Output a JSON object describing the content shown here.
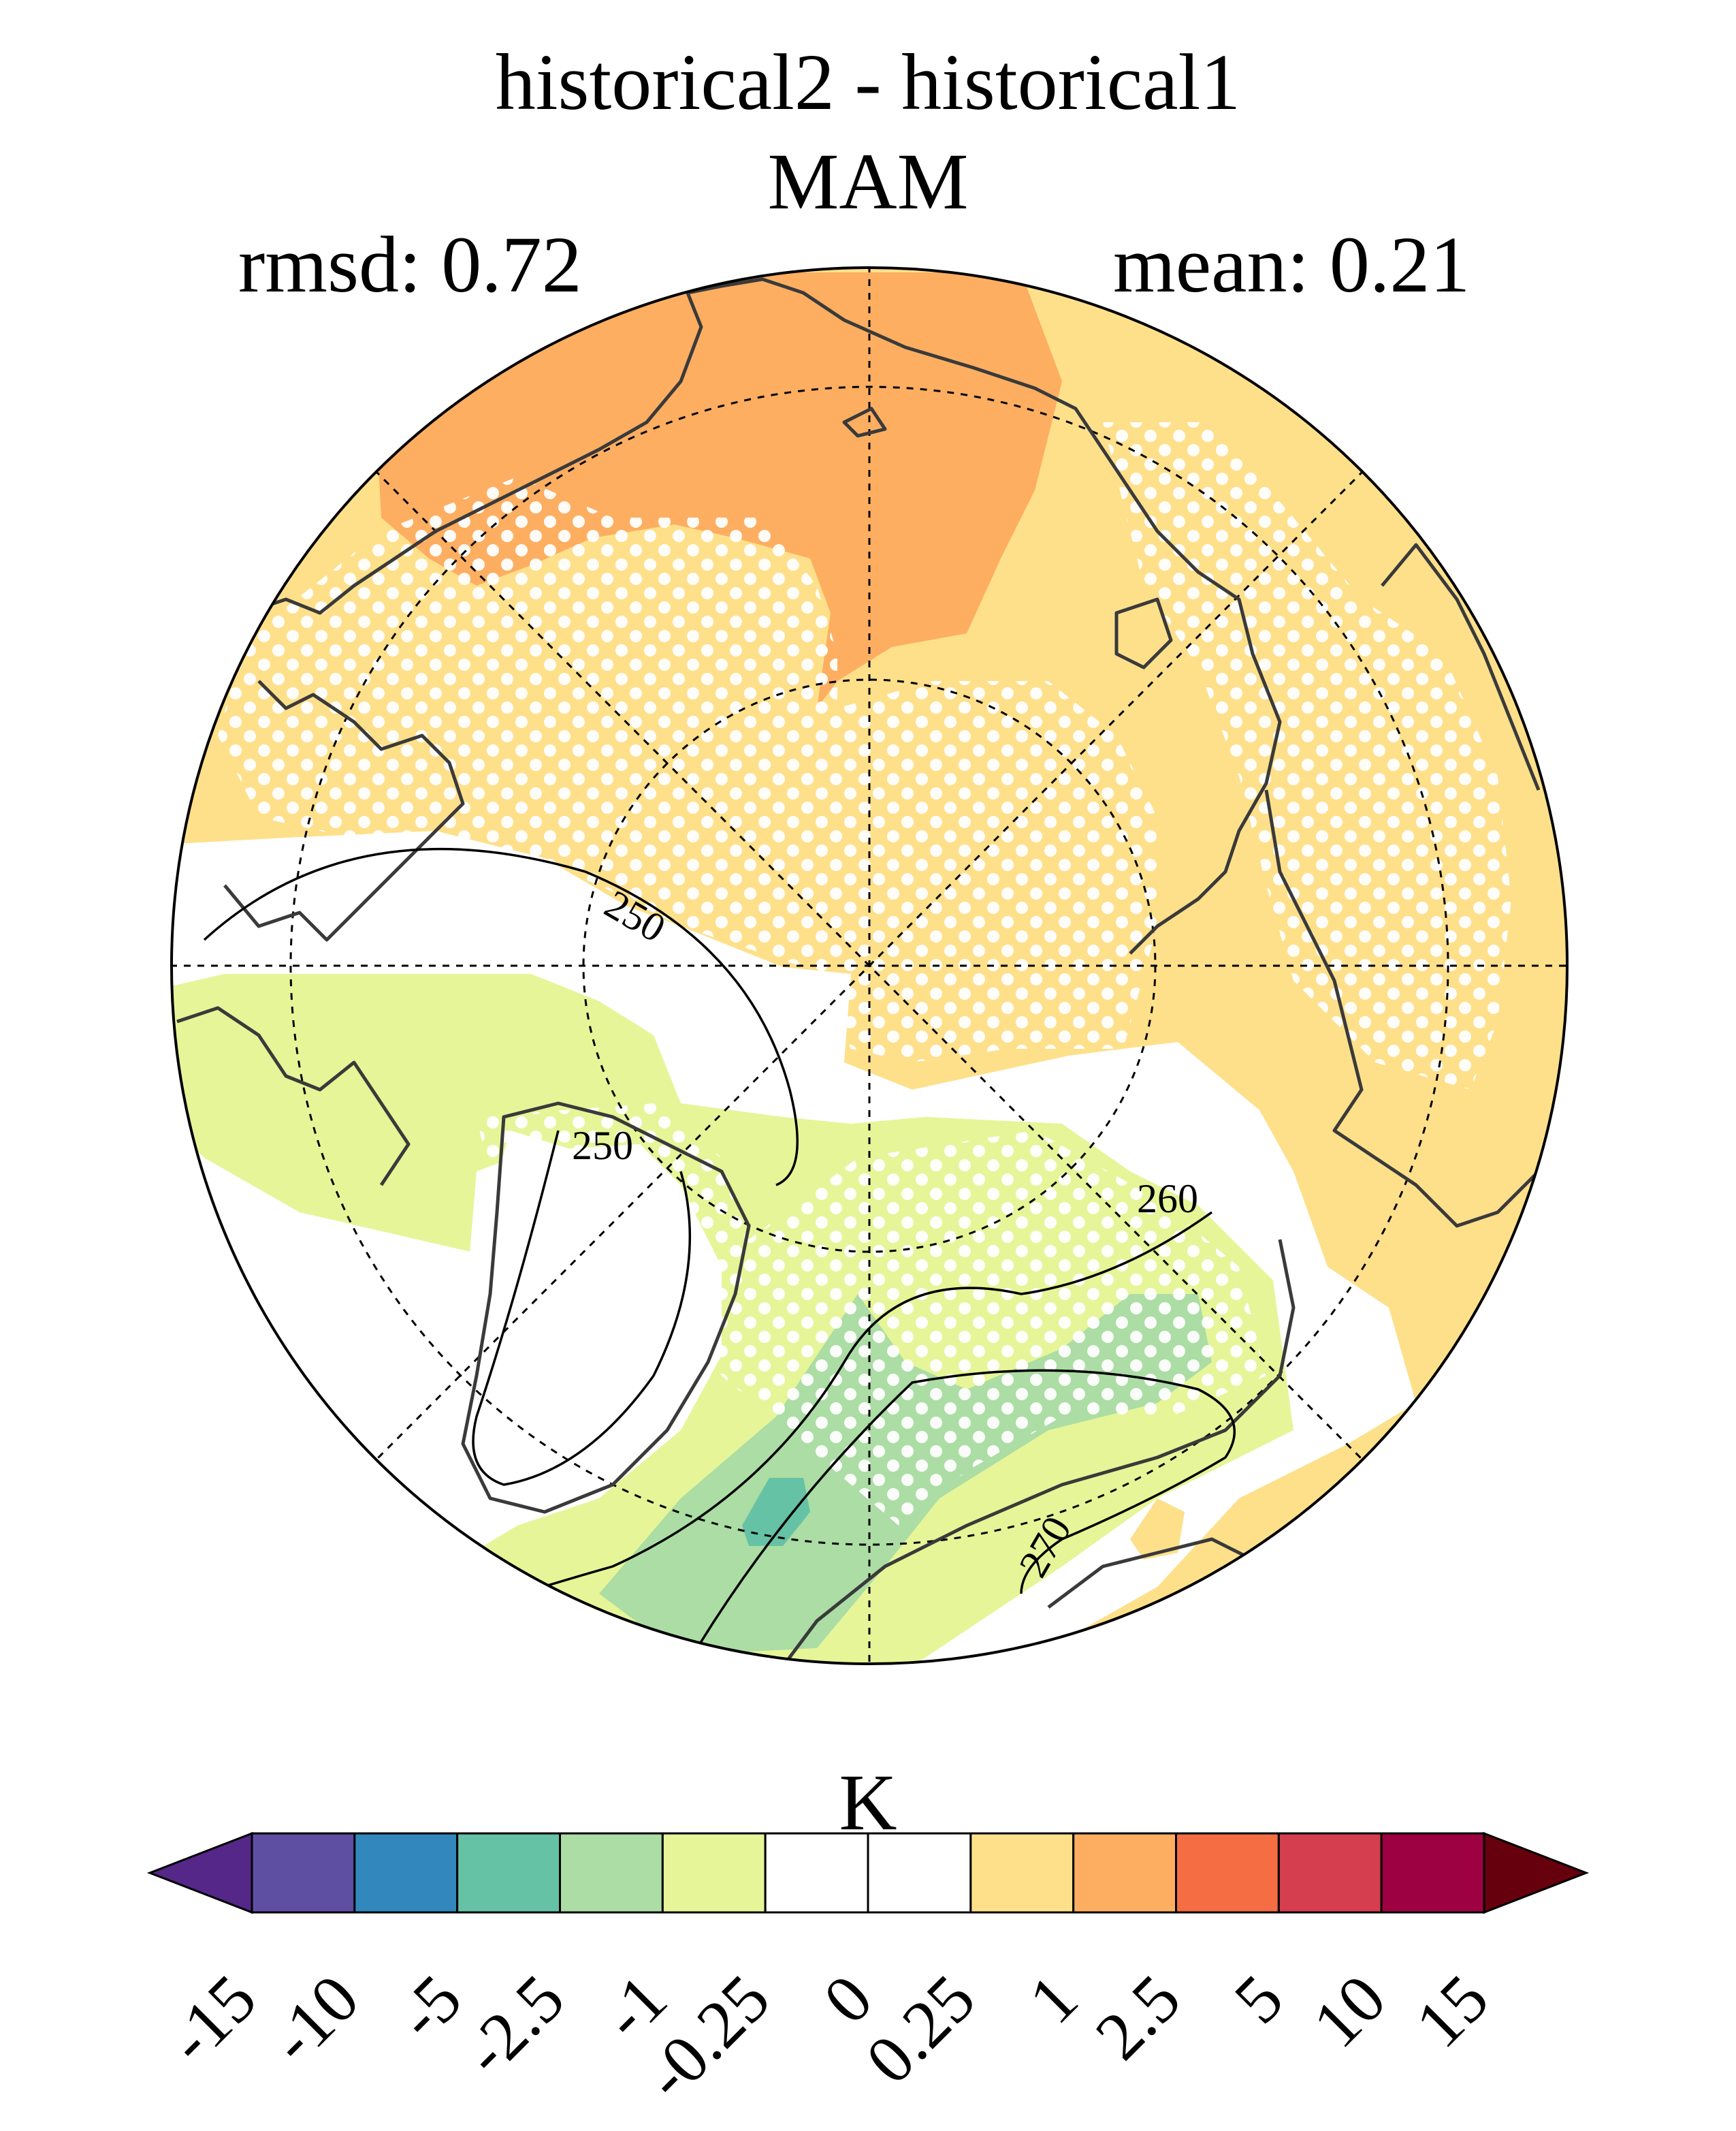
{
  "title": {
    "line1": "historical2 - historical1",
    "line2": "MAM"
  },
  "stats": {
    "rmsd": "rmsd: 0.72",
    "mean": "mean: 0.21"
  },
  "map": {
    "projection": "north polar stereographic",
    "contours": [
      {
        "label": "250"
      },
      {
        "label": "250"
      },
      {
        "label": "260"
      },
      {
        "label": "270"
      }
    ],
    "stippling": "white dots mark significant differences"
  },
  "colorbar": {
    "units": "K",
    "tick_labels": [
      "-15",
      "-10",
      "-5",
      "-2.5",
      "-1",
      "-0.25",
      "0",
      "0.25",
      "1",
      "2.5",
      "5",
      "10",
      "15"
    ],
    "colors": [
      "#542788",
      "#5e4fa2",
      "#3288bd",
      "#66c2a5",
      "#abdda4",
      "#e6f598",
      "#ffffff",
      "#ffffff",
      "#fee08b",
      "#fdae61",
      "#f46d43",
      "#d53e4f",
      "#9e0142",
      "#67000d"
    ]
  },
  "palette": {
    "orange": "#fdae61",
    "light_orange": "#fee08b",
    "light_green": "#e6f598",
    "green": "#abdda4",
    "teal": "#66c2a5",
    "white": "#ffffff"
  }
}
